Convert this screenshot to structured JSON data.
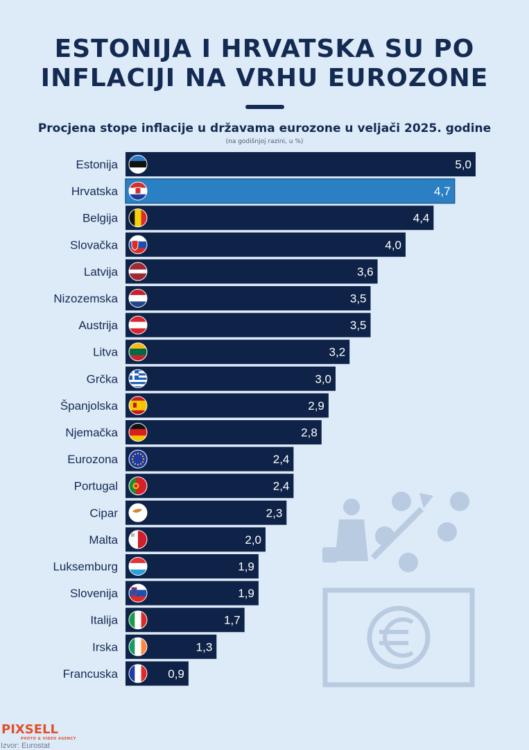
{
  "header": {
    "title_line1": "ESTONIJA I HRVATSKA SU PO",
    "title_line2": "INFLACIJI NA VRHU EUROZONE",
    "subtitle": "Procjena stope inflacije u državama eurozone u veljači 2025. godine",
    "unit_note": "(na godišnjoj razini, u %)"
  },
  "colors": {
    "bar": "#0e2347",
    "highlight_bar": "#2a80c3",
    "background": "#ddeaf8",
    "title": "#132a52"
  },
  "chart_data": {
    "type": "bar",
    "orientation": "horizontal",
    "categories": [
      "Estonija",
      "Hrvatska",
      "Belgija",
      "Slovačka",
      "Latvija",
      "Nizozemska",
      "Austrija",
      "Litva",
      "Grčka",
      "Španjolska",
      "Njemačka",
      "Eurozona",
      "Portugal",
      "Cipar",
      "Malta",
      "Luksemburg",
      "Slovenija",
      "Italija",
      "Irska",
      "Francuska"
    ],
    "values": [
      5.0,
      4.7,
      4.4,
      4.0,
      3.6,
      3.5,
      3.5,
      3.2,
      3.0,
      2.9,
      2.8,
      2.4,
      2.4,
      2.3,
      2.0,
      1.9,
      1.9,
      1.7,
      1.3,
      0.9
    ],
    "value_labels": [
      "5,0",
      "4,7",
      "4,4",
      "4,0",
      "3,6",
      "3,5",
      "3,5",
      "3,2",
      "3,0",
      "2,9",
      "2,8",
      "2,4",
      "2,4",
      "2,3",
      "2,0",
      "1,9",
      "1,9",
      "1,7",
      "1,3",
      "0,9"
    ],
    "highlight": "Hrvatska",
    "flags": [
      "flag-estonia-icon",
      "flag-croatia-icon",
      "flag-belgium-icon",
      "flag-slovakia-icon",
      "flag-latvia-icon",
      "flag-netherlands-icon",
      "flag-austria-icon",
      "flag-lithuania-icon",
      "flag-greece-icon",
      "flag-spain-icon",
      "flag-germany-icon",
      "flag-eu-icon",
      "flag-portugal-icon",
      "flag-cyprus-icon",
      "flag-malta-icon",
      "flag-luxembourg-icon",
      "flag-slovenia-icon",
      "flag-italy-icon",
      "flag-ireland-icon",
      "flag-france-icon"
    ],
    "xlim": [
      0,
      5.0
    ]
  },
  "footer": {
    "logo": "PIXSELL",
    "logo_tagline": "PHOTO & VIDEO AGENCY",
    "source": "Izvor: Eurostat"
  }
}
